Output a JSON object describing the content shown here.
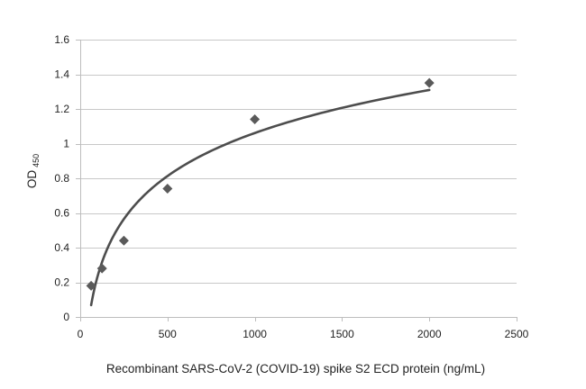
{
  "chart_data": {
    "type": "scatter",
    "title": "",
    "xlabel": "Recombinant SARS-CoV-2 (COVID-19) spike S2 ECD protein (ng/mL)",
    "ylabel": "OD",
    "ylabel_subscript": "450",
    "xlim": [
      0,
      2500
    ],
    "ylim": [
      0,
      1.6
    ],
    "xticks": [
      "0",
      "500",
      "1000",
      "1500",
      "2000",
      "2500"
    ],
    "yticks": [
      "0",
      "0.2",
      "0.4",
      "0.6",
      "0.8",
      "1",
      "1.2",
      "1.4",
      "1.6"
    ],
    "grid": "horizontal",
    "legend": "none",
    "colors": {
      "marker": "#5a5a5a",
      "trendline": "#4d4d4d",
      "grid": "#c8c8c8",
      "axis": "#bdbdbd"
    },
    "series": [
      {
        "marker": "diamond",
        "points": [
          {
            "x": 62.5,
            "y": 0.18
          },
          {
            "x": 125,
            "y": 0.28
          },
          {
            "x": 250,
            "y": 0.44
          },
          {
            "x": 500,
            "y": 0.74
          },
          {
            "x": 1000,
            "y": 1.14
          },
          {
            "x": 2000,
            "y": 1.35
          }
        ]
      }
    ],
    "trendline": {
      "type": "logarithmic",
      "a": 0.3581,
      "b": -1.4125,
      "x_from": 62.5,
      "x_to": 2000
    }
  }
}
